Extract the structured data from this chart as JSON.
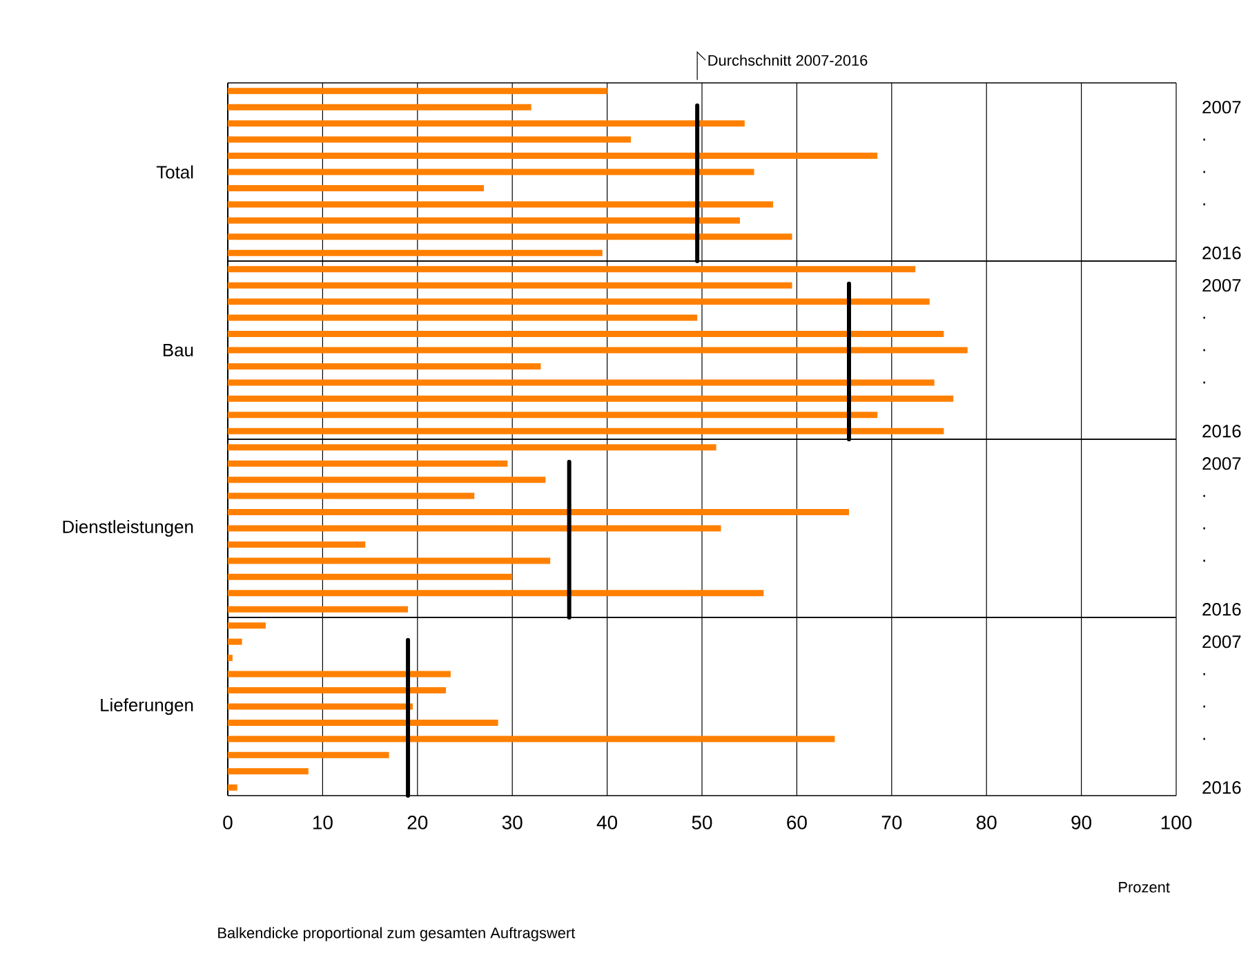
{
  "chart_data": [
    {
      "type": "bar",
      "orientation": "horizontal",
      "ylabel": "Total",
      "categories": [
        null,
        "2007",
        null,
        ".",
        null,
        ".",
        null,
        ".",
        null,
        null,
        "2016"
      ],
      "values": [
        40,
        32,
        54.5,
        42.5,
        68.5,
        55.5,
        27,
        57.5,
        54,
        59.5,
        39.5
      ],
      "color": "#ff8000",
      "xlim": [
        0,
        100
      ],
      "xticks": [
        0,
        10,
        20,
        30,
        40,
        50,
        60,
        70,
        80,
        90,
        100
      ],
      "grid": "x",
      "tick_labels": "y",
      "ref_lines": [
        {
          "axis": "x",
          "value": 49.5,
          "label": "Durchschnitt 2007-2016",
          "color": "#000000"
        }
      ]
    },
    {
      "type": "bar",
      "orientation": "horizontal",
      "ylabel": "Bau",
      "categories": [
        null,
        "2007",
        null,
        ".",
        null,
        ".",
        null,
        ".",
        null,
        null,
        "2016"
      ],
      "values": [
        72.5,
        59.5,
        74,
        49.5,
        75.5,
        78,
        33,
        74.5,
        76.5,
        68.5,
        75.5
      ],
      "color": "#ff8000",
      "xlim": [
        0,
        100
      ],
      "xticks": [
        0,
        10,
        20,
        30,
        40,
        50,
        60,
        70,
        80,
        90,
        100
      ],
      "grid": "x",
      "tick_labels": "y",
      "ref_lines": [
        {
          "axis": "x",
          "value": 65.5,
          "color": "#000000"
        }
      ]
    },
    {
      "type": "bar",
      "orientation": "horizontal",
      "ylabel": "Dienstleistungen",
      "categories": [
        null,
        "2007",
        null,
        ".",
        null,
        ".",
        null,
        ".",
        null,
        null,
        "2016"
      ],
      "values": [
        51.5,
        29.5,
        33.5,
        26,
        65.5,
        52,
        14.5,
        34,
        30,
        56.5,
        19
      ],
      "color": "#ff8000",
      "xlim": [
        0,
        100
      ],
      "xticks": [
        0,
        10,
        20,
        30,
        40,
        50,
        60,
        70,
        80,
        90,
        100
      ],
      "grid": "x",
      "tick_labels": "y",
      "ref_lines": [
        {
          "axis": "x",
          "value": 36,
          "color": "#000000"
        }
      ]
    },
    {
      "type": "bar",
      "orientation": "horizontal",
      "ylabel": "Lieferungen",
      "xlabel": "Prozent",
      "categories": [
        null,
        "2007",
        null,
        ".",
        null,
        ".",
        null,
        ".",
        null,
        null,
        "2016"
      ],
      "values": [
        4,
        1.5,
        0.5,
        23.5,
        23,
        19.5,
        28.5,
        64,
        17,
        8.5,
        1
      ],
      "color": "#ff8000",
      "xlim": [
        0,
        100
      ],
      "xticks": [
        0,
        10,
        20,
        30,
        40,
        50,
        60,
        70,
        80,
        90,
        100
      ],
      "grid": "x",
      "ref_lines": [
        {
          "axis": "x",
          "value": 19,
          "color": "#000000"
        }
      ],
      "annotations": [
        "Balkendicke proportional zum gesamten Auftragswert"
      ]
    }
  ]
}
